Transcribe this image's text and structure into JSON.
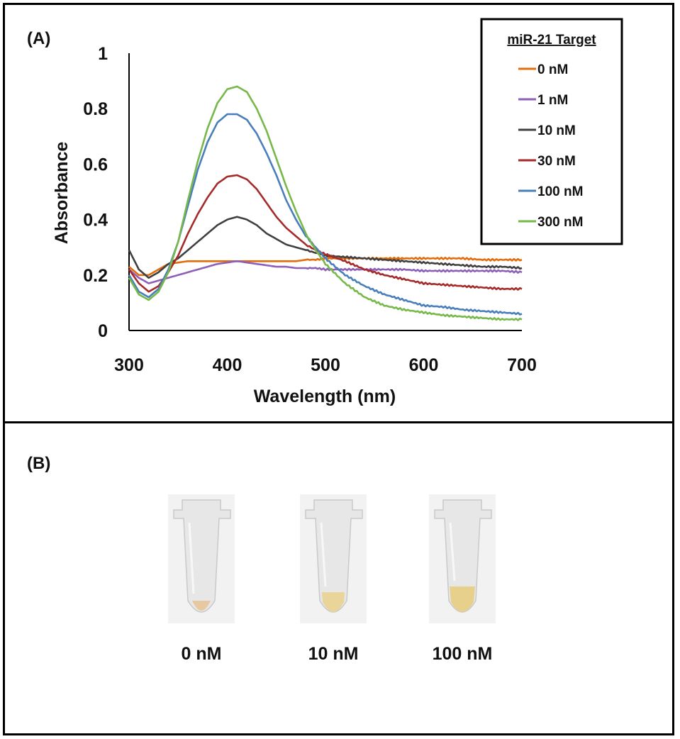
{
  "panel_a_label": "(A)",
  "panel_b_label": "(B)",
  "chart_data": {
    "type": "line",
    "xlabel": "Wavelength (nm)",
    "ylabel": "Absorbance",
    "xlim": [
      300,
      700
    ],
    "ylim": [
      0,
      1
    ],
    "xticks": [
      300,
      400,
      500,
      600,
      700
    ],
    "yticks": [
      0,
      0.2,
      0.4,
      0.6,
      0.8,
      1
    ],
    "ytick_labels": [
      "0",
      "0.2",
      "0.4",
      "0.6",
      "0.8",
      "1"
    ],
    "grid": false,
    "legend": {
      "title": "miR-21 Target",
      "placement": "top-right"
    },
    "x": [
      300,
      310,
      320,
      330,
      340,
      350,
      360,
      370,
      380,
      390,
      400,
      410,
      420,
      430,
      440,
      450,
      460,
      470,
      480,
      490,
      500,
      520,
      540,
      560,
      580,
      600,
      620,
      640,
      660,
      680,
      700
    ],
    "series": [
      {
        "name": "0 nM",
        "color": "#E46C0A",
        "values": [
          0.23,
          0.2,
          0.2,
          0.22,
          0.24,
          0.245,
          0.25,
          0.25,
          0.25,
          0.25,
          0.25,
          0.25,
          0.25,
          0.25,
          0.25,
          0.25,
          0.25,
          0.25,
          0.255,
          0.255,
          0.26,
          0.26,
          0.26,
          0.26,
          0.26,
          0.26,
          0.26,
          0.26,
          0.255,
          0.255,
          0.255
        ]
      },
      {
        "name": "1 nM",
        "color": "#8E5FB8",
        "values": [
          0.22,
          0.19,
          0.17,
          0.18,
          0.19,
          0.2,
          0.21,
          0.22,
          0.23,
          0.24,
          0.245,
          0.25,
          0.245,
          0.24,
          0.235,
          0.23,
          0.23,
          0.225,
          0.225,
          0.225,
          0.22,
          0.22,
          0.22,
          0.22,
          0.22,
          0.215,
          0.215,
          0.215,
          0.215,
          0.215,
          0.21
        ]
      },
      {
        "name": "10 nM",
        "color": "#404040",
        "values": [
          0.29,
          0.22,
          0.19,
          0.21,
          0.24,
          0.26,
          0.29,
          0.32,
          0.35,
          0.38,
          0.4,
          0.41,
          0.4,
          0.38,
          0.35,
          0.33,
          0.31,
          0.3,
          0.29,
          0.28,
          0.27,
          0.265,
          0.26,
          0.255,
          0.25,
          0.245,
          0.24,
          0.235,
          0.23,
          0.23,
          0.225
        ]
      },
      {
        "name": "30 nM",
        "color": "#A52A2A",
        "values": [
          0.22,
          0.17,
          0.14,
          0.16,
          0.21,
          0.27,
          0.35,
          0.42,
          0.48,
          0.53,
          0.555,
          0.56,
          0.545,
          0.51,
          0.46,
          0.41,
          0.37,
          0.34,
          0.31,
          0.29,
          0.275,
          0.25,
          0.22,
          0.2,
          0.185,
          0.17,
          0.165,
          0.16,
          0.155,
          0.15,
          0.15
        ]
      },
      {
        "name": "100 nM",
        "color": "#4A7EBB",
        "values": [
          0.2,
          0.14,
          0.12,
          0.15,
          0.22,
          0.32,
          0.45,
          0.58,
          0.68,
          0.75,
          0.78,
          0.78,
          0.76,
          0.71,
          0.64,
          0.56,
          0.47,
          0.4,
          0.34,
          0.3,
          0.26,
          0.2,
          0.16,
          0.13,
          0.11,
          0.09,
          0.085,
          0.075,
          0.07,
          0.065,
          0.06
        ]
      },
      {
        "name": "300 nM",
        "color": "#77B84A",
        "values": [
          0.19,
          0.13,
          0.11,
          0.14,
          0.21,
          0.32,
          0.47,
          0.61,
          0.73,
          0.82,
          0.87,
          0.88,
          0.86,
          0.8,
          0.72,
          0.62,
          0.52,
          0.43,
          0.35,
          0.29,
          0.24,
          0.17,
          0.12,
          0.09,
          0.075,
          0.065,
          0.055,
          0.05,
          0.045,
          0.04,
          0.04
        ]
      }
    ]
  },
  "tubes": [
    {
      "label": "0 nM",
      "liquid_color": "#E8C8A0"
    },
    {
      "label": "10 nM",
      "liquid_color": "#E9D59A"
    },
    {
      "label": "100 nM",
      "liquid_color": "#E6D08C"
    }
  ]
}
